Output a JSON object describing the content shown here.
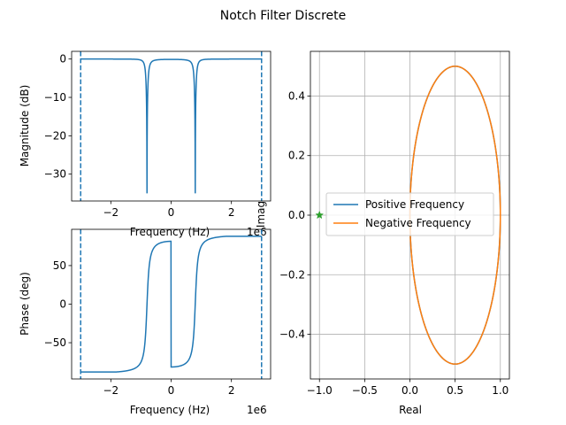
{
  "figure": {
    "title": "Notch Filter Discrete",
    "colors": {
      "series1": "#1f77b4",
      "series2": "#ff7f0e",
      "marker": "#2ca02c",
      "grid": "#b0b0b0"
    }
  },
  "chart_data": [
    {
      "id": "magnitude",
      "type": "line",
      "title": "",
      "xlabel": "Frequency (Hz)",
      "ylabel": "Magnitude (dB)",
      "x_offset_label": "1e6",
      "xlim": [
        -3300000.0,
        3300000.0
      ],
      "ylim": [
        -37,
        2
      ],
      "xticks": [
        -2000000.0,
        0,
        2000000.0
      ],
      "xtick_labels": [
        "−2",
        "0",
        "2"
      ],
      "yticks": [
        0,
        -10,
        -20,
        -30
      ],
      "ytick_labels": [
        "0",
        "−10",
        "−20",
        "−30"
      ],
      "grid": false,
      "vlines": {
        "x": [
          -3000000.0,
          3000000.0
        ],
        "style": "dashed"
      },
      "series": [
        {
          "notches_hz": [
            -800000,
            800000
          ],
          "depth_db": -35,
          "x_range": [
            -3000000.0,
            3000000.0
          ]
        }
      ]
    },
    {
      "id": "phase",
      "type": "line",
      "title": "",
      "xlabel": "Frequency (Hz)",
      "ylabel": "Phase (deg)",
      "x_offset_label": "1e6",
      "xlim": [
        -3300000.0,
        3300000.0
      ],
      "ylim": [
        -97,
        97
      ],
      "xticks": [
        -2000000.0,
        0,
        2000000.0
      ],
      "xtick_labels": [
        "−2",
        "0",
        "2"
      ],
      "yticks": [
        50,
        0,
        -50
      ],
      "ytick_labels": [
        "50",
        "0",
        "−50"
      ],
      "grid": false,
      "vlines": {
        "x": [
          -3000000.0,
          3000000.0
        ],
        "style": "dashed"
      },
      "series": [
        {
          "notches_hz": [
            -800000,
            800000
          ],
          "max_phase_deg": 88,
          "x_range": [
            -3000000.0,
            3000000.0
          ]
        }
      ]
    },
    {
      "id": "nyquist",
      "type": "line",
      "title": "",
      "xlabel": "Real",
      "ylabel": "Imag",
      "xlim": [
        -1.1,
        1.1
      ],
      "ylim": [
        -0.55,
        0.55
      ],
      "xticks": [
        -1.0,
        -0.5,
        0.0,
        0.5,
        1.0
      ],
      "xtick_labels": [
        "−1.0",
        "−0.5",
        "0.0",
        "0.5",
        "1.0"
      ],
      "yticks": [
        0.4,
        0.2,
        0.0,
        -0.2,
        -0.4
      ],
      "ytick_labels": [
        "0.4",
        "0.2",
        "0.0",
        "−0.2",
        "−0.4"
      ],
      "grid": true,
      "legend": "center-left",
      "series": [
        {
          "name": "Positive Frequency",
          "shape": "circle",
          "center": [
            0.5,
            0
          ],
          "radius": 0.5
        },
        {
          "name": "Negative Frequency",
          "shape": "circle",
          "center": [
            0.5,
            0
          ],
          "radius": 0.5
        }
      ],
      "marker": {
        "x": -1,
        "y": 0,
        "symbol": "star"
      }
    }
  ]
}
